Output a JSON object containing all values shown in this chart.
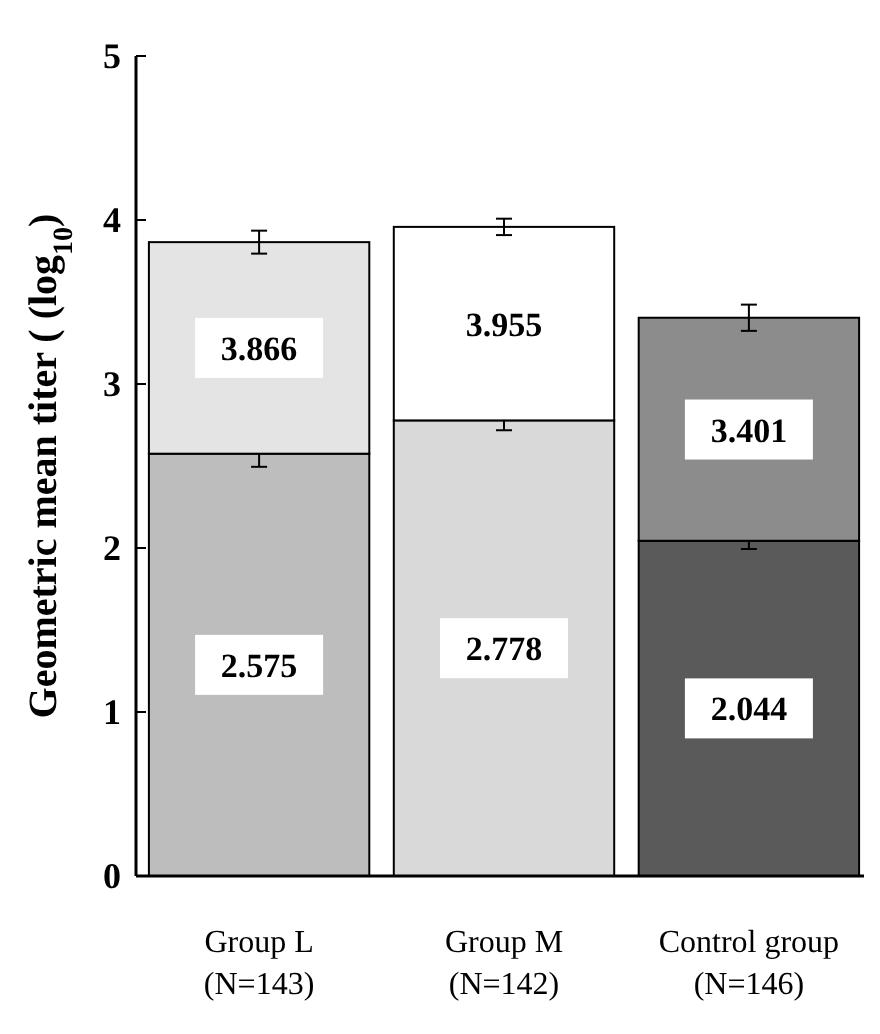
{
  "chart_data": {
    "type": "bar",
    "ylabel": "Geometric mean titer ( (log$_{10}$)",
    "categories": [
      "Group L\n(N=143)",
      "Group M\n(N=142)",
      "Control group\n(N=146)"
    ],
    "series": [
      {
        "colors": [
          "#bdbdbd",
          "#d9d9d9",
          "#5a5a5a"
        ],
        "values": [
          2.575,
          2.778,
          2.044
        ],
        "errors": [
          0.08,
          0.06,
          0.05
        ],
        "value_labels": [
          "2.575",
          "2.778",
          "2.044"
        ]
      },
      {
        "colors": [
          "#e4e4e4",
          "#ffffff",
          "#8c8c8c"
        ],
        "values": [
          1.29,
          1.18,
          1.36
        ],
        "errors": [
          0.07,
          0.05,
          0.08
        ]
      }
    ],
    "annotations": [
      {
        "text": "3.866",
        "x": "Group L\n(N=143)",
        "y": 3.866
      },
      {
        "text": "3.955",
        "x": "Group M\n(N=142)",
        "y": 3.955
      },
      {
        "text": "3.401",
        "x": "Control group\n(N=146)",
        "y": 3.401
      }
    ],
    "stacked": true,
    "ylim": [
      0,
      5
    ],
    "yticks": [
      0,
      1,
      2,
      3,
      4,
      5
    ],
    "grid": false
  }
}
